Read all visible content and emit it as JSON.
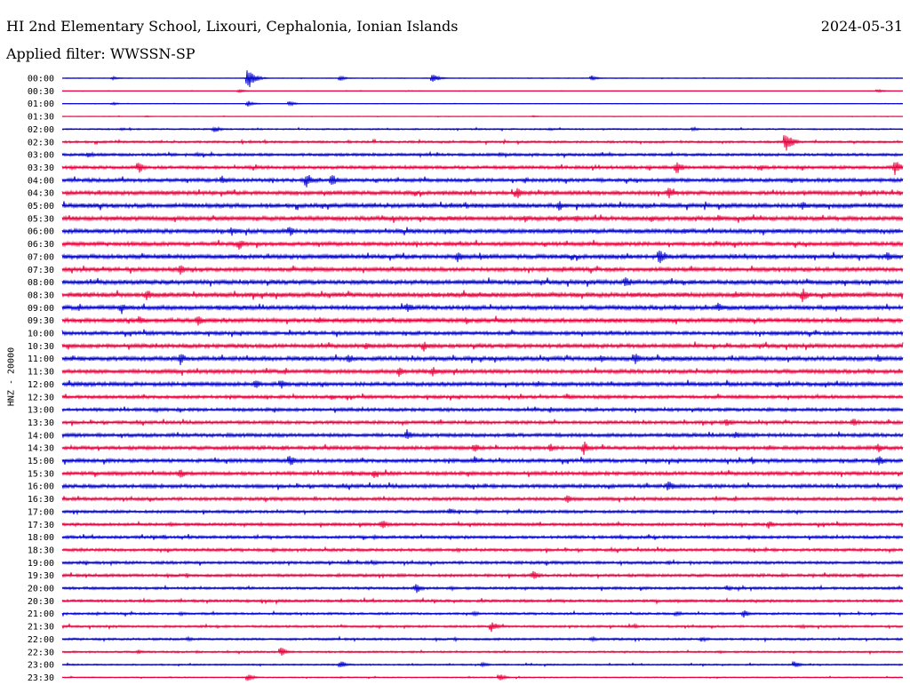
{
  "header": {
    "station_title": "HI 2nd Elementary School, Lixouri, Cephalonia, Ionian Islands",
    "date": "2024-05-31",
    "filter_text": "Applied filter: WWSSN-SP"
  },
  "chart_data": {
    "type": "line",
    "title": "HI 2nd Elementary School, Lixouri, Cephalonia, Ionian Islands",
    "ylabel": "HNZ - 20000",
    "xlabel": "",
    "grid": false,
    "colors": [
      "#0000cc",
      "#e8003c"
    ],
    "categories": [
      "00:00",
      "00:30",
      "01:00",
      "01:30",
      "02:00",
      "02:30",
      "03:00",
      "03:30",
      "04:00",
      "04:30",
      "05:00",
      "05:30",
      "06:00",
      "06:30",
      "07:00",
      "07:30",
      "08:00",
      "08:30",
      "09:00",
      "09:30",
      "10:00",
      "10:30",
      "11:00",
      "11:30",
      "12:00",
      "12:30",
      "13:00",
      "13:30",
      "14:00",
      "14:30",
      "15:00",
      "15:30",
      "16:00",
      "16:30",
      "17:00",
      "17:30",
      "18:00",
      "18:30",
      "19:00",
      "19:30",
      "20:00",
      "20:30",
      "21:00",
      "21:30",
      "22:00",
      "22:30",
      "23:00",
      "23:30"
    ],
    "noise_level": [
      0.3,
      0.2,
      0.3,
      0.3,
      0.8,
      1.2,
      1.5,
      1.8,
      2.0,
      2.2,
      2.4,
      2.4,
      2.4,
      2.2,
      2.4,
      2.2,
      2.4,
      2.6,
      2.4,
      2.4,
      2.0,
      2.2,
      2.4,
      2.2,
      2.2,
      1.8,
      1.8,
      1.8,
      2.0,
      2.0,
      2.0,
      2.0,
      2.0,
      1.8,
      1.6,
      1.6,
      1.6,
      1.6,
      1.6,
      1.6,
      1.4,
      1.4,
      1.2,
      1.2,
      1.2,
      1.0,
      0.8,
      0.6
    ],
    "events": [
      [
        [
          0.22,
          16
        ],
        [
          0.44,
          6
        ],
        [
          0.06,
          2
        ],
        [
          0.33,
          3
        ],
        [
          0.63,
          3
        ]
      ],
      [
        [
          0.97,
          2
        ],
        [
          0.21,
          2
        ]
      ],
      [
        [
          0.22,
          4
        ],
        [
          0.06,
          2
        ],
        [
          0.27,
          3
        ]
      ],
      [
        [
          0.56,
          1
        ],
        [
          0.1,
          1
        ]
      ],
      [
        [
          0.18,
          5
        ],
        [
          0.75,
          3
        ],
        [
          0.07,
          2
        ],
        [
          0.58,
          2
        ]
      ],
      [
        [
          0.86,
          15
        ],
        [
          0.34,
          2
        ],
        [
          0.05,
          2
        ]
      ],
      [
        [
          0.03,
          5
        ],
        [
          0.16,
          3
        ],
        [
          0.52,
          3
        ]
      ],
      [
        [
          0.09,
          8
        ],
        [
          0.73,
          9
        ],
        [
          0.99,
          10
        ],
        [
          0.83,
          5
        ],
        [
          0.88,
          4
        ],
        [
          0.01,
          3
        ]
      ],
      [
        [
          0.19,
          7
        ],
        [
          0.29,
          10
        ],
        [
          0.32,
          8
        ],
        [
          0.55,
          4
        ],
        [
          0.86,
          3
        ]
      ],
      [
        [
          0.54,
          8
        ],
        [
          0.72,
          8
        ],
        [
          0.95,
          5
        ]
      ],
      [
        [
          0.59,
          8
        ],
        [
          0.88,
          7
        ],
        [
          0.43,
          3
        ]
      ],
      [
        [
          0.55,
          5
        ],
        [
          0.59,
          5
        ],
        [
          0.61,
          6
        ],
        [
          0.7,
          5
        ],
        [
          0.78,
          5
        ],
        [
          0.38,
          4
        ],
        [
          0.46,
          4
        ]
      ],
      [
        [
          0.2,
          7
        ],
        [
          0.27,
          7
        ],
        [
          0.46,
          4
        ],
        [
          0.74,
          5
        ],
        [
          0.61,
          3
        ]
      ],
      [
        [
          0.21,
          7
        ],
        [
          0.1,
          3
        ],
        [
          0.66,
          3
        ]
      ],
      [
        [
          0.47,
          7
        ],
        [
          0.71,
          11
        ],
        [
          0.98,
          7
        ],
        [
          0.2,
          3
        ]
      ],
      [
        [
          0.14,
          8
        ],
        [
          0.44,
          3
        ],
        [
          0.86,
          3
        ]
      ],
      [
        [
          0.67,
          8
        ],
        [
          0.35,
          3
        ],
        [
          0.52,
          3
        ]
      ],
      [
        [
          0.1,
          8
        ],
        [
          0.88,
          9
        ],
        [
          0.8,
          5
        ],
        [
          0.55,
          3
        ]
      ],
      [
        [
          0.07,
          8
        ],
        [
          0.41,
          8
        ],
        [
          0.78,
          6
        ],
        [
          0.92,
          5
        ]
      ],
      [
        [
          0.09,
          7
        ],
        [
          0.16,
          8
        ],
        [
          0.48,
          6
        ],
        [
          0.62,
          3
        ]
      ],
      [
        [
          0.24,
          3
        ],
        [
          0.85,
          3
        ]
      ],
      [
        [
          0.36,
          6
        ],
        [
          0.43,
          7
        ],
        [
          0.6,
          3
        ]
      ],
      [
        [
          0.14,
          8
        ],
        [
          0.34,
          7
        ],
        [
          0.64,
          7
        ],
        [
          0.68,
          9
        ],
        [
          0.97,
          6
        ]
      ],
      [
        [
          0.4,
          8
        ],
        [
          0.44,
          7
        ],
        [
          0.18,
          3
        ],
        [
          0.8,
          3
        ]
      ],
      [
        [
          0.23,
          7
        ],
        [
          0.26,
          7
        ],
        [
          0.85,
          5
        ]
      ],
      [
        [
          0.32,
          4
        ],
        [
          0.6,
          4
        ],
        [
          0.65,
          3
        ]
      ],
      [
        [
          0.11,
          3
        ],
        [
          0.58,
          4
        ],
        [
          0.84,
          3
        ]
      ],
      [
        [
          0.79,
          6
        ],
        [
          0.94,
          6
        ],
        [
          0.24,
          3
        ]
      ],
      [
        [
          0.41,
          7
        ],
        [
          0.8,
          5
        ],
        [
          0.53,
          3
        ]
      ],
      [
        [
          0.49,
          6
        ],
        [
          0.58,
          6
        ],
        [
          0.62,
          9
        ],
        [
          0.97,
          6
        ],
        [
          0.35,
          3
        ]
      ],
      [
        [
          0.27,
          8
        ],
        [
          0.49,
          6
        ],
        [
          0.82,
          5
        ],
        [
          0.97,
          8
        ]
      ],
      [
        [
          0.14,
          7
        ],
        [
          0.37,
          6
        ],
        [
          0.07,
          3
        ]
      ],
      [
        [
          0.72,
          8
        ],
        [
          0.1,
          3
        ],
        [
          0.43,
          3
        ]
      ],
      [
        [
          0.6,
          6
        ],
        [
          0.84,
          3
        ],
        [
          0.3,
          3
        ]
      ],
      [
        [
          0.46,
          5
        ],
        [
          0.13,
          2
        ]
      ],
      [
        [
          0.38,
          6
        ],
        [
          0.84,
          5
        ]
      ],
      [
        [
          0.37,
          3
        ],
        [
          0.61,
          3
        ],
        [
          0.12,
          3
        ]
      ],
      [
        [
          0.47,
          3
        ],
        [
          0.25,
          3
        ]
      ],
      [
        [
          0.37,
          4
        ],
        [
          0.72,
          3
        ]
      ],
      [
        [
          0.56,
          7
        ],
        [
          0.4,
          3
        ],
        [
          0.95,
          3
        ]
      ],
      [
        [
          0.42,
          7
        ],
        [
          0.79,
          4
        ]
      ],
      [
        [
          0.22,
          2
        ]
      ],
      [
        [
          0.81,
          5
        ],
        [
          0.14,
          3
        ],
        [
          0.49,
          3
        ],
        [
          0.73,
          4
        ]
      ],
      [
        [
          0.51,
          7
        ],
        [
          0.68,
          3
        ],
        [
          0.88,
          3
        ]
      ],
      [
        [
          0.76,
          4
        ],
        [
          0.15,
          3
        ],
        [
          0.63,
          3
        ]
      ],
      [
        [
          0.26,
          6
        ],
        [
          0.09,
          3
        ]
      ],
      [
        [
          0.33,
          6
        ],
        [
          0.5,
          3
        ],
        [
          0.87,
          5
        ]
      ],
      [
        [
          0.22,
          5
        ],
        [
          0.52,
          5
        ]
      ]
    ]
  }
}
